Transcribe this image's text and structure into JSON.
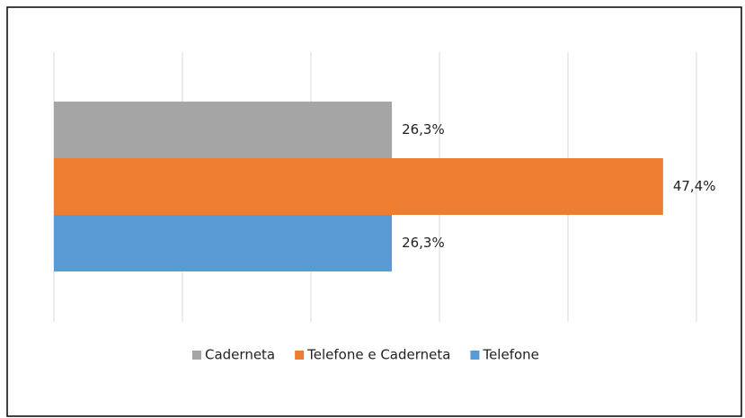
{
  "chart_data": {
    "type": "bar",
    "orientation": "horizontal",
    "series": [
      {
        "name": "Caderneta",
        "color": "#a5a5a5",
        "values": [
          26.3
        ],
        "value_labels": [
          "26,3%"
        ]
      },
      {
        "name": "Telefone e Caderneta",
        "color": "#ed7d31",
        "values": [
          47.4
        ],
        "value_labels": [
          "47,4%"
        ]
      },
      {
        "name": "Telefone",
        "color": "#5b9bd5",
        "values": [
          26.3
        ],
        "value_labels": [
          "26,3%"
        ]
      }
    ],
    "xlim": [
      0,
      50
    ],
    "xticks": [
      0,
      10,
      20,
      30,
      40,
      50
    ],
    "grid": true,
    "legend": "bottom"
  }
}
